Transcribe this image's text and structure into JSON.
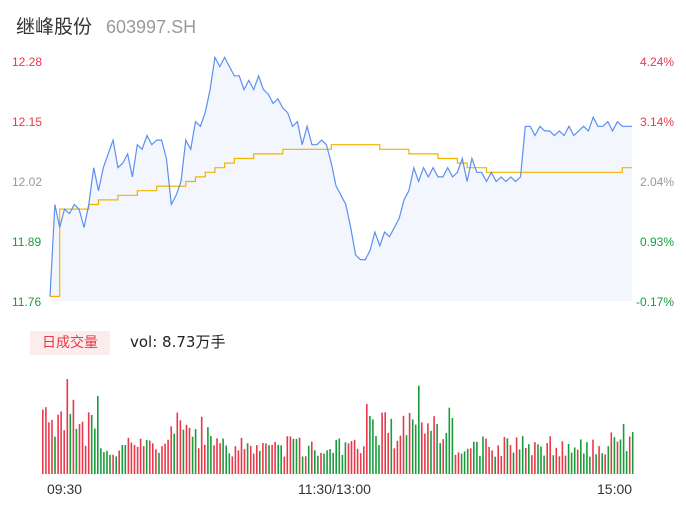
{
  "header": {
    "name": "继峰股份",
    "code": "603997.SH"
  },
  "colors": {
    "up": "#e8394a",
    "down": "#1a9c3c",
    "neutral": "#999999",
    "price_line": "#5b8ff0",
    "avg_line": "#f0b400"
  },
  "price_axis": {
    "left": [
      {
        "text": "12.28",
        "color": "#e8394a"
      },
      {
        "text": "12.15",
        "color": "#e8394a"
      },
      {
        "text": "12.02",
        "color": "#999999"
      },
      {
        "text": "11.89",
        "color": "#1a9c3c"
      },
      {
        "text": "11.76",
        "color": "#1a9c3c"
      }
    ],
    "right": [
      {
        "text": "4.24%",
        "color": "#e8394a"
      },
      {
        "text": "3.14%",
        "color": "#e8394a"
      },
      {
        "text": "2.04%",
        "color": "#999999"
      },
      {
        "text": "0.93%",
        "color": "#1a9c3c"
      },
      {
        "text": "-0.17%",
        "color": "#1a9c3c"
      }
    ]
  },
  "volume": {
    "badge": "日成交量",
    "label": "vol: 8.73万手"
  },
  "time_axis": [
    "09:30",
    "11:30/13:00",
    "15:00"
  ],
  "chart_data": {
    "type": "line",
    "ylim": [
      11.76,
      12.28
    ],
    "xlim": [
      0,
      240
    ],
    "x_ticks": [
      "09:30",
      "11:30/13:00",
      "15:00"
    ],
    "series": [
      {
        "role": "price",
        "x": [
          0,
          2,
          4,
          6,
          8,
          10,
          12,
          14,
          16,
          18,
          20,
          22,
          24,
          26,
          28,
          30,
          32,
          34,
          36,
          38,
          40,
          42,
          44,
          46,
          48,
          50,
          52,
          54,
          56,
          58,
          60,
          62,
          64,
          66,
          68,
          70,
          72,
          74,
          76,
          78,
          80,
          82,
          84,
          86,
          88,
          90,
          92,
          94,
          96,
          98,
          100,
          102,
          104,
          106,
          108,
          110,
          112,
          114,
          116,
          118,
          120,
          122,
          124,
          126,
          128,
          130,
          132,
          134,
          136,
          138,
          140,
          142,
          144,
          146,
          148,
          150,
          152,
          154,
          156,
          158,
          160,
          162,
          164,
          166,
          168,
          170,
          172,
          174,
          176,
          178,
          180,
          182,
          184,
          186,
          188,
          190,
          192,
          194,
          196,
          198,
          200,
          202,
          204,
          206,
          208,
          210,
          212,
          214,
          216,
          218,
          220,
          222,
          224,
          226,
          228,
          230,
          232,
          234,
          236,
          238,
          240
        ],
        "values": [
          11.77,
          11.97,
          11.92,
          11.96,
          11.95,
          11.97,
          11.96,
          11.92,
          11.97,
          12.05,
          12.0,
          12.05,
          12.08,
          12.11,
          12.05,
          12.06,
          12.08,
          12.03,
          12.1,
          12.09,
          12.12,
          12.1,
          12.11,
          12.11,
          12.07,
          11.97,
          11.99,
          12.02,
          12.11,
          12.09,
          12.15,
          12.14,
          12.17,
          12.22,
          12.29,
          12.27,
          12.29,
          12.27,
          12.25,
          12.25,
          12.22,
          12.24,
          12.22,
          12.25,
          12.22,
          12.21,
          12.19,
          12.2,
          12.18,
          12.17,
          12.14,
          12.15,
          12.1,
          12.14,
          12.1,
          12.1,
          12.11,
          12.1,
          12.06,
          12.01,
          11.99,
          11.97,
          11.92,
          11.86,
          11.85,
          11.85,
          11.87,
          11.91,
          11.88,
          11.91,
          11.9,
          11.92,
          11.94,
          11.98,
          12.0,
          12.05,
          12.02,
          12.05,
          12.03,
          12.05,
          12.03,
          12.03,
          12.05,
          12.03,
          12.04,
          12.07,
          12.02,
          12.07,
          12.04,
          12.04,
          12.02,
          12.04,
          12.02,
          12.03,
          12.02,
          12.03,
          12.02,
          12.03,
          12.14,
          12.14,
          12.12,
          12.14,
          12.13,
          12.13,
          12.12,
          12.13,
          12.12,
          12.14,
          12.12,
          12.13,
          12.14,
          12.13,
          12.16,
          12.14,
          12.14,
          12.15,
          12.13,
          12.15,
          12.14,
          12.14,
          12.14
        ]
      },
      {
        "role": "average",
        "x": [
          0,
          4,
          8,
          12,
          16,
          20,
          24,
          28,
          32,
          36,
          40,
          44,
          48,
          52,
          56,
          60,
          64,
          68,
          72,
          76,
          80,
          84,
          88,
          92,
          96,
          100,
          104,
          108,
          112,
          116,
          120,
          124,
          128,
          132,
          136,
          140,
          144,
          148,
          152,
          156,
          160,
          164,
          168,
          172,
          176,
          180,
          184,
          188,
          192,
          196,
          200,
          204,
          208,
          212,
          216,
          220,
          224,
          228,
          232,
          236,
          240
        ],
        "values": [
          11.77,
          11.96,
          11.96,
          11.96,
          11.97,
          11.98,
          11.98,
          11.99,
          11.99,
          12.0,
          12.0,
          12.01,
          12.01,
          12.01,
          12.02,
          12.03,
          12.04,
          12.05,
          12.06,
          12.07,
          12.07,
          12.08,
          12.08,
          12.08,
          12.09,
          12.09,
          12.09,
          12.09,
          12.09,
          12.1,
          12.1,
          12.1,
          12.1,
          12.1,
          12.09,
          12.09,
          12.09,
          12.08,
          12.08,
          12.08,
          12.07,
          12.07,
          12.06,
          12.05,
          12.05,
          12.04,
          12.04,
          12.04,
          12.04,
          12.04,
          12.04,
          12.04,
          12.04,
          12.04,
          12.04,
          12.04,
          12.04,
          12.04,
          12.04,
          12.05,
          12.05
        ]
      }
    ],
    "volume_seed": 20240603
  }
}
